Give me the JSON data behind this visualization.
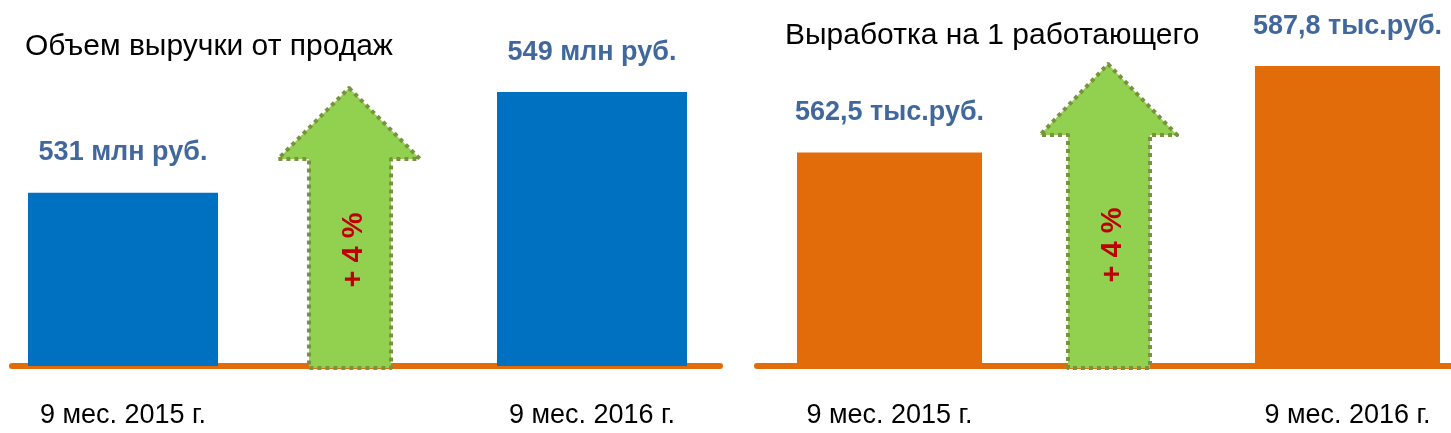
{
  "chart_data": [
    {
      "type": "bar",
      "title": "Объем выручки от продаж",
      "categories": [
        "9 мес. 2015 г.",
        "9 мес. 2016 г."
      ],
      "values": [
        531,
        549
      ],
      "value_labels": [
        "531 млн руб.",
        "549 млн руб."
      ],
      "color": "#0070c0",
      "ylim": [
        500,
        549
      ],
      "tick_labels": "x",
      "annotations": [
        "+ 4 %"
      ]
    },
    {
      "type": "bar",
      "title": "Выработка на 1 работающего",
      "categories": [
        "9 мес. 2015 г.",
        "9 мес. 2016 г."
      ],
      "values": [
        562.5,
        587.8
      ],
      "value_labels": [
        "562,5 тыс.руб.",
        "587,8 тыс.руб."
      ],
      "color": "#e36c0a",
      "ylim": [
        500,
        587.8
      ],
      "tick_labels": "x",
      "annotations": [
        "+ 4 %"
      ]
    }
  ]
}
